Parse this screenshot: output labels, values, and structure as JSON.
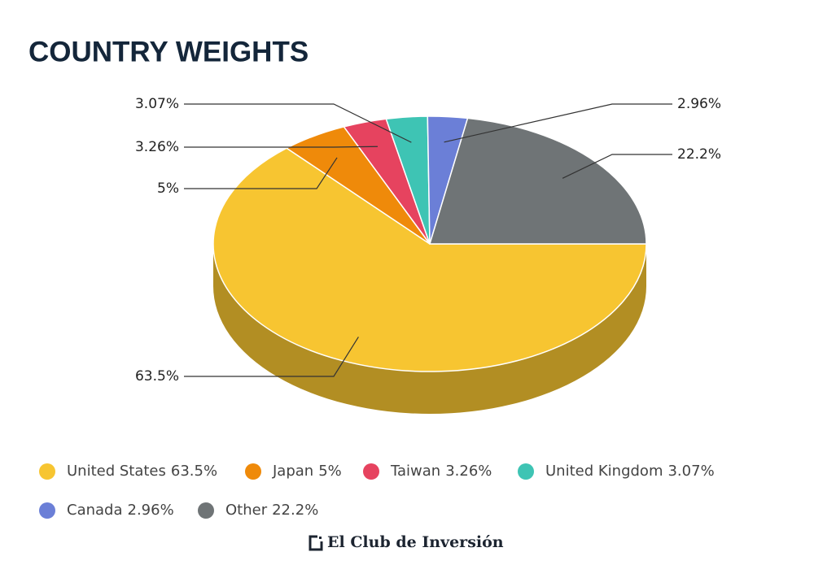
{
  "chart_data": {
    "type": "pie",
    "title": "COUNTRY WEIGHTS",
    "categories": [
      "United States",
      "Japan",
      "Taiwan",
      "United Kingdom",
      "Canada",
      "Other"
    ],
    "values": [
      63.5,
      5,
      3.26,
      3.07,
      2.96,
      22.2
    ],
    "value_labels": [
      "63.5%",
      "5%",
      "3.26%",
      "3.07%",
      "2.96%",
      "22.2%"
    ],
    "colors": [
      "#f7c531",
      "#ef8a0a",
      "#e6435f",
      "#3ec4b4",
      "#6b7fd7",
      "#6f7476"
    ]
  },
  "brand": "El Club de Inversión"
}
